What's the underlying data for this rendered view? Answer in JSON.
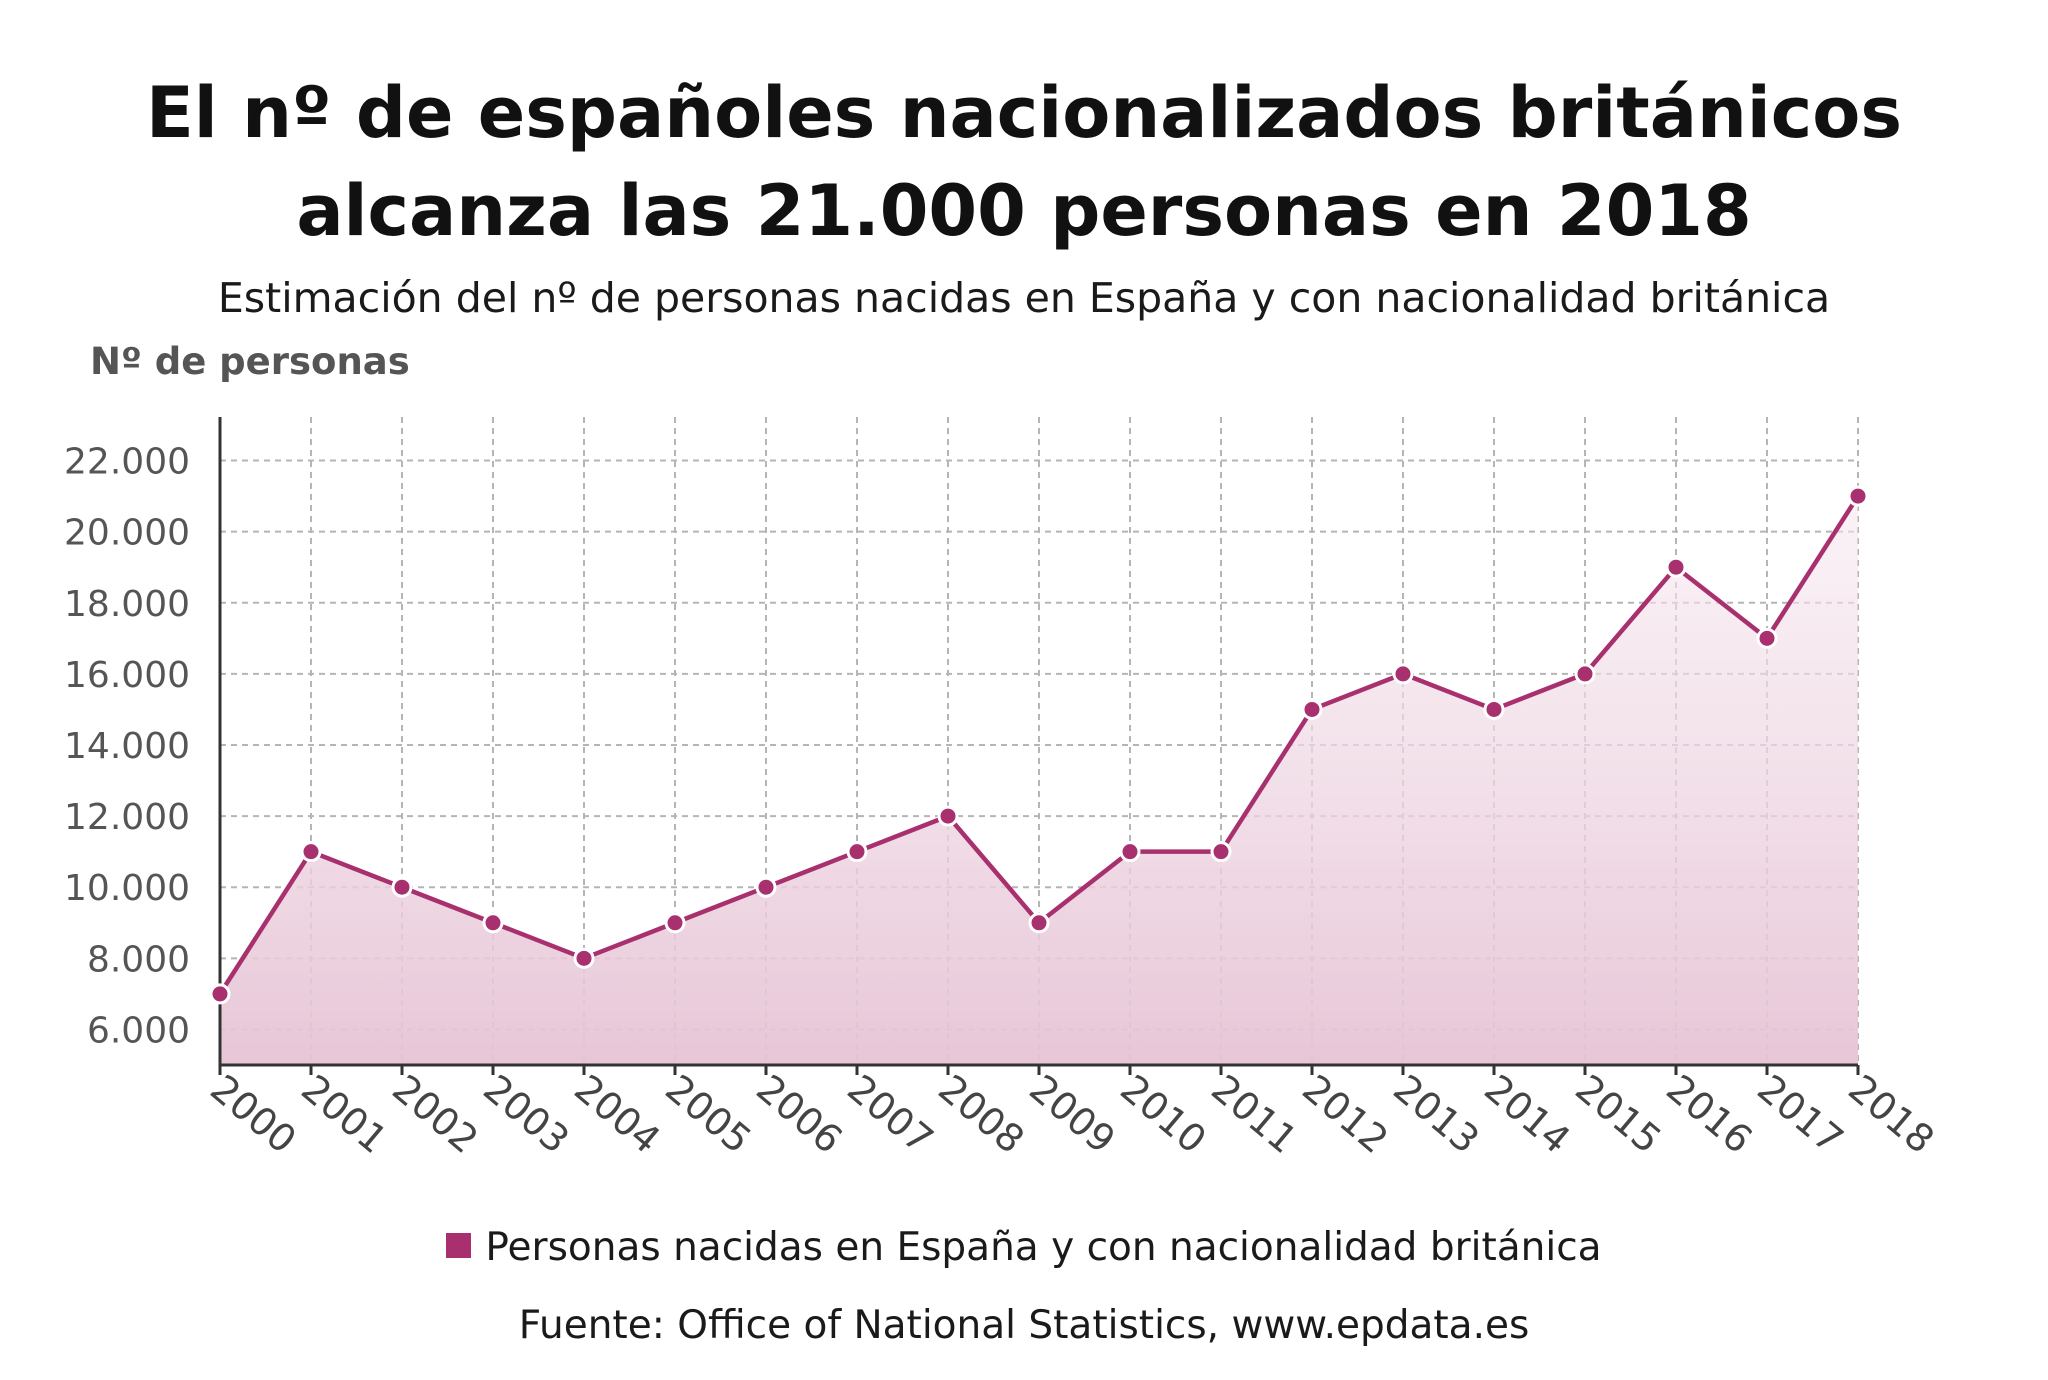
{
  "title_line1": "El nº de españoles nacionalizados británicos",
  "title_line2": "alcanza las 21.000 personas en 2018",
  "subtitle": "Estimación del nº de personas nacidas en España y con nacionalidad británica",
  "legend_label": "Personas nacidas en España y con nacionalidad británica",
  "source": "Fuente: Office of National Statistics, www.epdata.es",
  "colors": {
    "line": "#a8306e",
    "area": "#e8c6d9",
    "grid": "#b5b5b5"
  },
  "chart_data": {
    "type": "area",
    "ylabel": "Nº de personas",
    "x": [
      "2000",
      "2001",
      "2002",
      "2003",
      "2004",
      "2005",
      "2006",
      "2007",
      "2008",
      "2009",
      "2010",
      "2011",
      "2012",
      "2013",
      "2014",
      "2015",
      "2016",
      "2017",
      "2018"
    ],
    "series": [
      {
        "name": "Personas nacidas en España y con nacionalidad británica",
        "values": [
          7000,
          11000,
          10000,
          9000,
          8000,
          9000,
          10000,
          11000,
          12000,
          9000,
          11000,
          11000,
          15000,
          16000,
          15000,
          16000,
          19000,
          17000,
          21000
        ]
      }
    ],
    "ylim": [
      5000,
      23000
    ],
    "yticks": [
      6000,
      8000,
      10000,
      12000,
      14000,
      16000,
      18000,
      20000,
      22000
    ],
    "ytick_labels": [
      "6.000",
      "8.000",
      "10.000",
      "12.000",
      "14.000",
      "16.000",
      "18.000",
      "20.000",
      "22.000"
    ],
    "grid": true,
    "legend_position": "bottom"
  }
}
